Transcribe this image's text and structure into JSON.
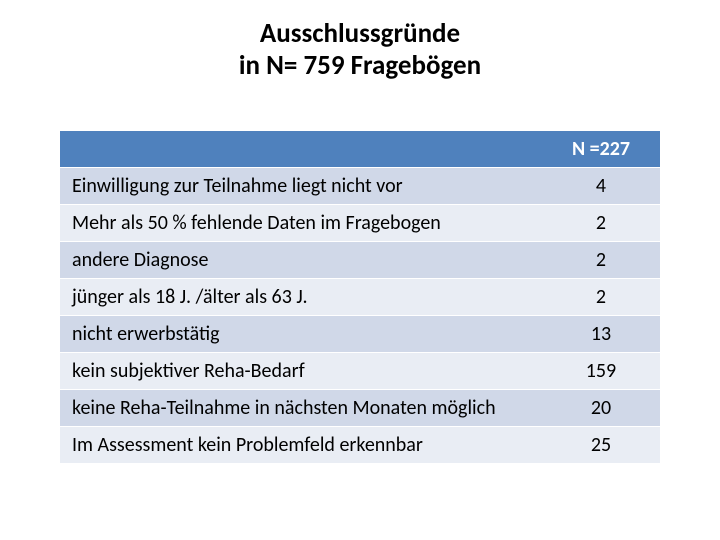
{
  "title": {
    "line1": "Ausschlussgründe",
    "line2": "in N= 759 Fragebögen",
    "fontsize": 27,
    "color": "#000000",
    "weight": 700
  },
  "table": {
    "type": "table",
    "header_bg": "#4f81bd",
    "header_text_color": "#ffffff",
    "row_alt_bg": "#d0d8e8",
    "row_bg": "#e9edf4",
    "border_color": "#ffffff",
    "row_fontsize": 20,
    "header_fontsize": 20,
    "columns": [
      {
        "key": "label",
        "header": "",
        "align": "left",
        "width_pct": 80
      },
      {
        "key": "value",
        "header": "N =227",
        "align": "center",
        "width_pct": 20
      }
    ],
    "rows": [
      {
        "label": "Einwilligung zur Teilnahme liegt nicht vor",
        "value": "4"
      },
      {
        "label": "Mehr als 50 % fehlende Daten im Fragebogen",
        "value": "2"
      },
      {
        "label": "andere Diagnose",
        "value": "2"
      },
      {
        "label": "jünger als 18 J. /älter als 63 J.",
        "value": "2"
      },
      {
        "label": "nicht erwerbstätig",
        "value": "13"
      },
      {
        "label": "kein subjektiver Reha-Bedarf",
        "value": "159"
      },
      {
        "label": "keine Reha-Teilnahme in nächsten Monaten möglich",
        "value": "20"
      },
      {
        "label": "Im Assessment kein Problemfeld erkennbar",
        "value": "25"
      }
    ]
  }
}
